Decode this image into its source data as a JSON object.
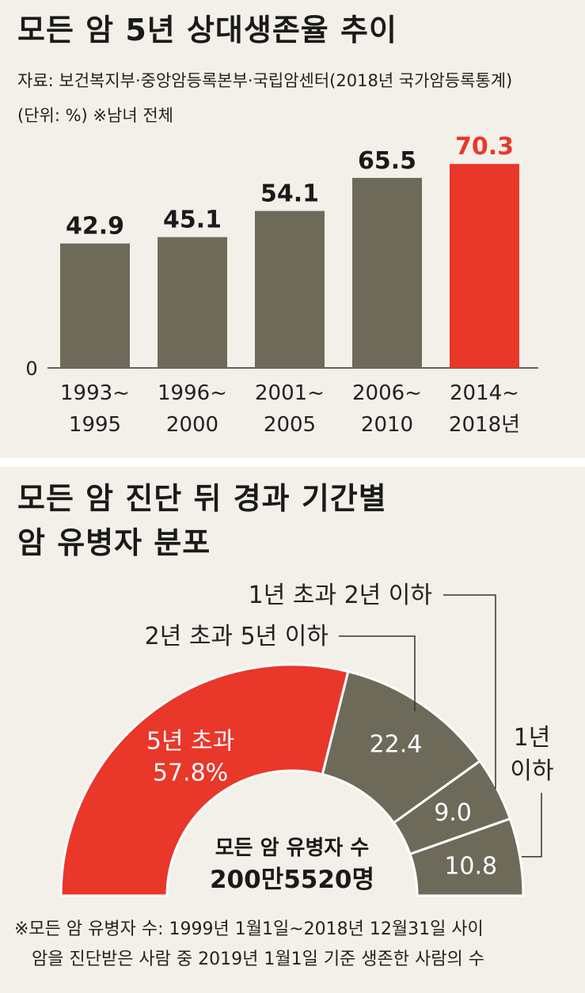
{
  "colors": {
    "highlight": "#e9372a",
    "bar": "#6e6a5a",
    "background": "#f3f0e9",
    "axis": "#333333"
  },
  "panel1": {
    "title": "모든 암 5년 상대생존율 추이",
    "source": "자료: 보건복지부·중앙암등록본부·국립암센터(2018년 국가암등록통계)",
    "unit": "(단위: %) ※남녀 전체"
  },
  "panel2": {
    "title_line1": "모든 암 진단 뒤 경과 기간별",
    "title_line2": "암 유병자 분포",
    "center_line1": "모든 암 유병자 수",
    "center_line2": "200만5520명",
    "footnote_line1": "※모든 암 유병자 수: 1999년 1월1일~2018년 12월31일 사이",
    "footnote_line2": "암을 진단받은 사람 중 2019년 1월1일 기준 생존한 사람의 수"
  },
  "chart_data": [
    {
      "type": "bar",
      "title": "모든 암 5년 상대생존율 추이",
      "categories": [
        {
          "line1": "1993~",
          "line2": "1995"
        },
        {
          "line1": "1996~",
          "line2": "2000"
        },
        {
          "line1": "2001~",
          "line2": "2005"
        },
        {
          "line1": "2006~",
          "line2": "2010"
        },
        {
          "line1": "2014~",
          "line2": "2018년"
        }
      ],
      "values": [
        42.9,
        45.1,
        54.1,
        65.5,
        70.3
      ],
      "value_labels": [
        "42.9",
        "45.1",
        "54.1",
        "65.5",
        "70.3"
      ],
      "highlight_index": 4,
      "y_zero_label": "0",
      "ylim": [
        0,
        75
      ],
      "grid": false
    },
    {
      "type": "pie",
      "style": "half-donut",
      "title": "모든 암 진단 뒤 경과 기간별 암 유병자 분포",
      "slices": [
        {
          "label": "5년 초과",
          "value": 57.8,
          "value_label": "57.8%",
          "color": "#e9372a",
          "label_position": "inside"
        },
        {
          "label": "2년 초과 5년 이하",
          "value": 22.4,
          "value_label": "22.4",
          "color": "#6e6a5a",
          "label_position": "callout"
        },
        {
          "label": "1년 초과 2년 이하",
          "value": 9.0,
          "value_label": "9.0",
          "color": "#6e6a5a",
          "label_position": "callout"
        },
        {
          "label": "1년 이하",
          "value": 10.8,
          "value_label": "10.8",
          "color": "#6e6a5a",
          "label_position": "callout"
        }
      ]
    }
  ]
}
